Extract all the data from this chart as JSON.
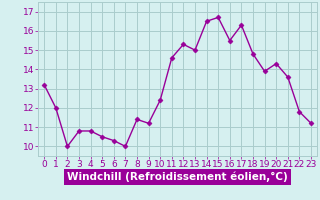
{
  "x": [
    0,
    1,
    2,
    3,
    4,
    5,
    6,
    7,
    8,
    9,
    10,
    11,
    12,
    13,
    14,
    15,
    16,
    17,
    18,
    19,
    20,
    21,
    22,
    23
  ],
  "y": [
    13.2,
    12.0,
    10.0,
    10.8,
    10.8,
    10.5,
    10.3,
    10.0,
    11.4,
    11.2,
    12.4,
    14.6,
    15.3,
    15.0,
    16.5,
    16.7,
    15.5,
    16.3,
    14.8,
    13.9,
    14.3,
    13.6,
    11.8,
    11.2
  ],
  "line_color": "#990099",
  "marker": "D",
  "marker_size": 2.5,
  "line_width": 1.0,
  "bg_color": "#d6f0f0",
  "grid_color": "#aacccc",
  "xlabel": "Windchill (Refroidissement éolien,°C)",
  "xlabel_fontsize": 7.5,
  "tick_fontsize": 6.5,
  "yticks": [
    10,
    11,
    12,
    13,
    14,
    15,
    16,
    17
  ],
  "ylim": [
    9.5,
    17.5
  ],
  "xlim": [
    -0.5,
    23.5
  ],
  "xlabel_bg": "#990099",
  "xlabel_fg": "white"
}
